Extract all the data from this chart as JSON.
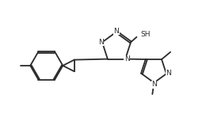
{
  "bg_color": "#ffffff",
  "line_color": "#2a2a2a",
  "text_color": "#2a2a2a",
  "line_width": 1.3,
  "font_size": 6.5,
  "fig_width": 2.65,
  "fig_height": 1.58,
  "dpi": 100,
  "xlim": [
    0,
    10
  ],
  "ylim": [
    0,
    6
  ]
}
